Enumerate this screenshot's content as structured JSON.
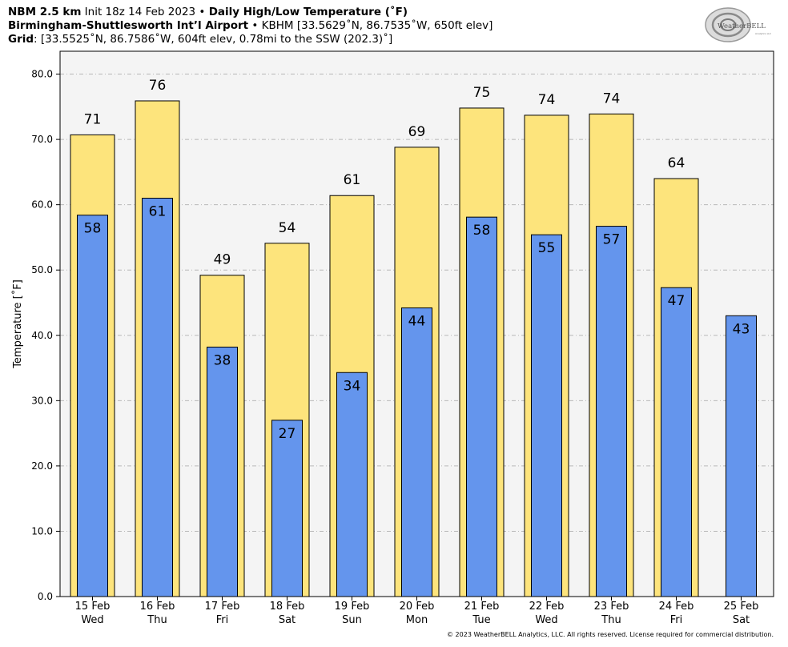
{
  "header": {
    "line1": {
      "bold1": "NBM 2.5 km",
      "init": " Init 18z 14 Feb 2023 • ",
      "bold2": "Daily High/Low Temperature (˚F)"
    },
    "line2": {
      "bold": "Birmingham-Shuttlesworth Int’l Airport",
      "rest": " • KBHM [33.5629˚N, 86.7535˚W, 650ft elev]"
    },
    "line3": {
      "bold": "Grid",
      "rest": ": [33.5525˚N, 86.7586˚W, 604ft elev, 0.78mi to the SSW (202.3)˚]"
    }
  },
  "logo": {
    "text": "WeatherBELL",
    "subtext": "Analytics LLC"
  },
  "footer": "© 2023 WeatherBELL Analytics, LLC. All rights reserved. License required for commercial distribution.",
  "colors": {
    "high": "#fde47c",
    "low": "#6495ed",
    "plot_bg": "#f4f4f4",
    "grid": "#b8b8b8"
  },
  "chart_data": {
    "type": "bar",
    "ylabel": "Temperature [˚F]",
    "ylim": [
      0,
      83.5
    ],
    "yticks": [
      "0.0",
      "10.0",
      "20.0",
      "30.0",
      "40.0",
      "50.0",
      "60.0",
      "70.0",
      "80.0"
    ],
    "grid": true,
    "categories": [
      [
        "15 Feb",
        "Wed"
      ],
      [
        "16 Feb",
        "Thu"
      ],
      [
        "17 Feb",
        "Fri"
      ],
      [
        "18 Feb",
        "Sat"
      ],
      [
        "19 Feb",
        "Sun"
      ],
      [
        "20 Feb",
        "Mon"
      ],
      [
        "21 Feb",
        "Tue"
      ],
      [
        "22 Feb",
        "Wed"
      ],
      [
        "23 Feb",
        "Thu"
      ],
      [
        "24 Feb",
        "Fri"
      ],
      [
        "25 Feb",
        "Sat"
      ]
    ],
    "series": [
      {
        "key": "high",
        "values": [
          70.7,
          75.9,
          49.2,
          54.1,
          61.4,
          68.8,
          74.8,
          73.7,
          73.9,
          64.0,
          null
        ],
        "labels": [
          "71",
          "76",
          "49",
          "54",
          "61",
          "69",
          "75",
          "74",
          "74",
          "64",
          null
        ]
      },
      {
        "key": "low",
        "values": [
          58.4,
          61.0,
          38.2,
          27.0,
          34.3,
          44.2,
          58.1,
          55.4,
          56.7,
          47.3,
          43.0
        ],
        "labels": [
          "58",
          "61",
          "38",
          "27",
          "34",
          "44",
          "58",
          "55",
          "57",
          "47",
          "43"
        ]
      }
    ]
  }
}
